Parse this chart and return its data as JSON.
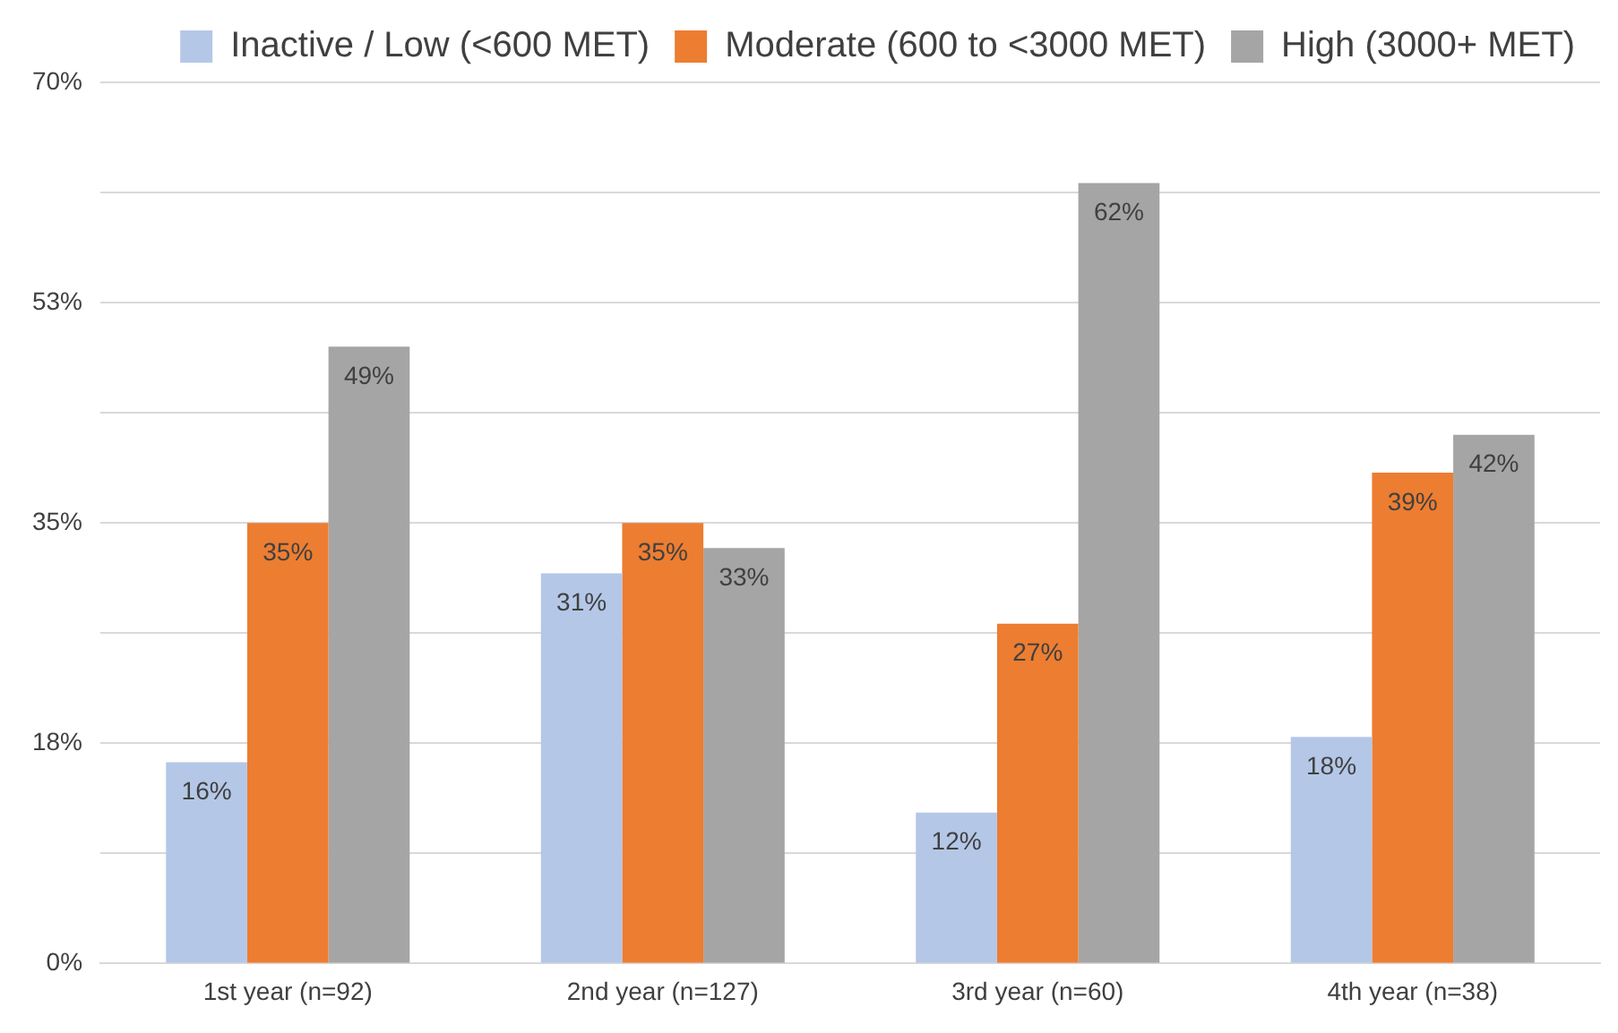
{
  "chart_data": {
    "type": "bar",
    "categories": [
      "1st year (n=92)",
      "2nd year (n=127)",
      "3rd year (n=60)",
      "4th year (n=38)"
    ],
    "series": [
      {
        "name": "Inactive / Low (<600 MET)",
        "color": "#b4c7e7",
        "values": [
          16,
          31,
          12,
          18
        ],
        "value_labels": [
          "16%",
          "31%",
          "12%",
          "18%"
        ]
      },
      {
        "name": "Moderate (600 to <3000 MET)",
        "color": "#ed7d31",
        "values": [
          35,
          35,
          27,
          39
        ],
        "value_labels": [
          "35%",
          "35%",
          "27%",
          "39%"
        ]
      },
      {
        "name": "High (3000+ MET)",
        "color": "#a5a5a5",
        "values": [
          49,
          33,
          62,
          42
        ],
        "value_labels": [
          "49%",
          "33%",
          "62%",
          "42%"
        ]
      }
    ],
    "ylim": [
      0,
      70
    ],
    "yticks": [
      {
        "value": 0,
        "label": "0%"
      },
      {
        "value": 8.75,
        "label": null
      },
      {
        "value": 17.5,
        "label": "18%"
      },
      {
        "value": 26.25,
        "label": null
      },
      {
        "value": 35,
        "label": "35%"
      },
      {
        "value": 43.75,
        "label": null
      },
      {
        "value": 52.5,
        "label": "53%"
      },
      {
        "value": 61.25,
        "label": null
      },
      {
        "value": 70,
        "label": "70%"
      }
    ],
    "grid": "y",
    "legend": "top"
  }
}
